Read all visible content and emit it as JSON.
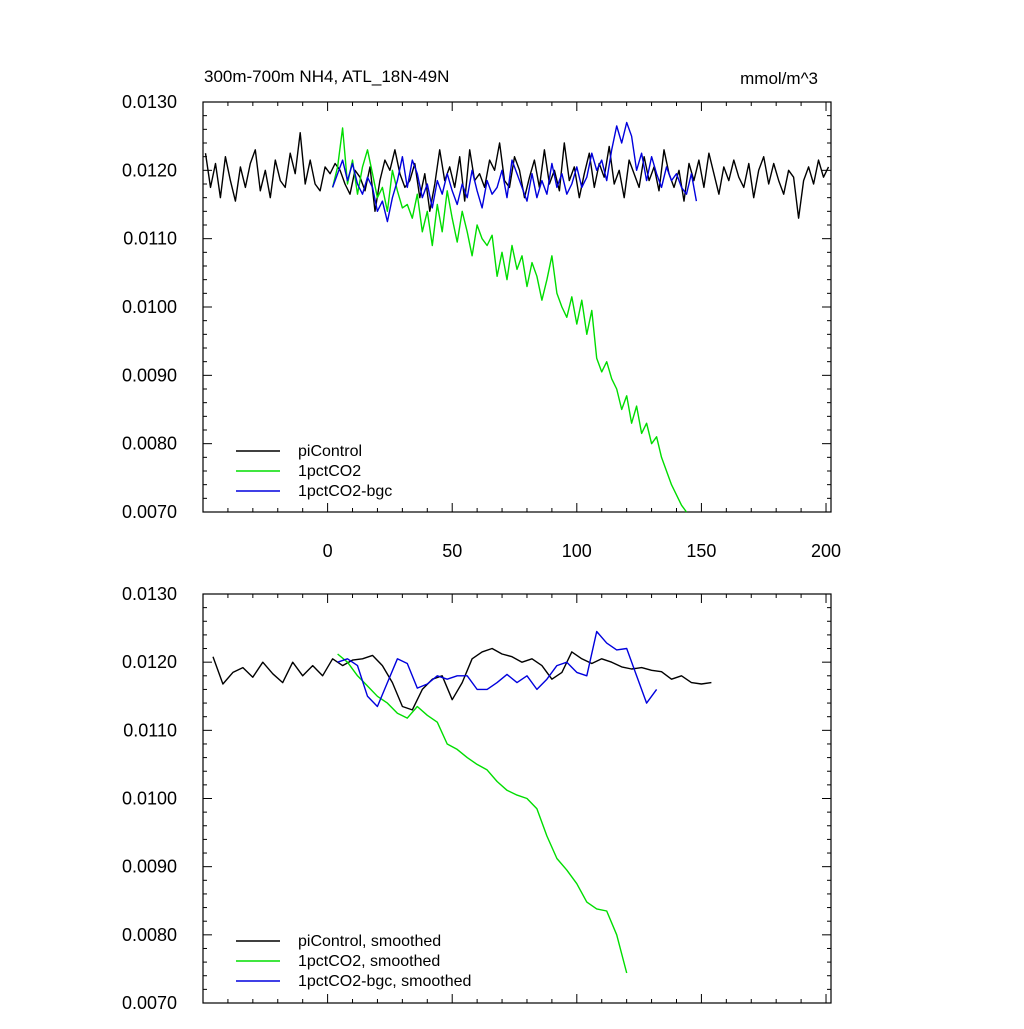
{
  "chart_data": [
    {
      "type": "line",
      "title": "300m-700m NH4, ATL_18N-49N",
      "units": "mmol/m^3",
      "xlim": [
        -50,
        202
      ],
      "ylim": [
        0.007,
        0.013
      ],
      "xticks": [
        0,
        50,
        100,
        150,
        200
      ],
      "xtick_labels": [
        "0",
        "50",
        "100",
        "150",
        "200"
      ],
      "yticks": [
        0.007,
        0.008,
        0.009,
        0.01,
        0.011,
        0.012,
        0.013
      ],
      "ytick_labels": [
        "0.0070",
        "0.0080",
        "0.0090",
        "0.0100",
        "0.0110",
        "0.0120",
        "0.0130"
      ],
      "legend_position": "bottom-left",
      "series": [
        {
          "name": "piControl",
          "color": "#000000",
          "x_start": -49,
          "x_step": 2,
          "values": [
            0.01225,
            0.01175,
            0.0121,
            0.0116,
            0.0122,
            0.01185,
            0.01155,
            0.01205,
            0.01175,
            0.0121,
            0.0123,
            0.0117,
            0.012,
            0.0116,
            0.01215,
            0.01185,
            0.01175,
            0.01225,
            0.01195,
            0.01255,
            0.0118,
            0.01215,
            0.0118,
            0.0117,
            0.01205,
            0.01195,
            0.0121,
            0.012,
            0.0118,
            0.01165,
            0.012,
            0.0119,
            0.0117,
            0.01205,
            0.0114,
            0.01185,
            0.01215,
            0.012,
            0.0123,
            0.01195,
            0.01175,
            0.01185,
            0.0121,
            0.0116,
            0.01195,
            0.0114,
            0.0118,
            0.0123,
            0.01185,
            0.01205,
            0.01175,
            0.0122,
            0.01155,
            0.0123,
            0.01185,
            0.01195,
            0.01175,
            0.01215,
            0.012,
            0.0124,
            0.01185,
            0.01175,
            0.0122,
            0.012,
            0.0116,
            0.0119,
            0.01215,
            0.01175,
            0.0123,
            0.0118,
            0.012,
            0.0117,
            0.0124,
            0.01185,
            0.01205,
            0.0116,
            0.01195,
            0.01225,
            0.01175,
            0.0121,
            0.0119,
            0.01235,
            0.0118,
            0.012,
            0.0116,
            0.01215,
            0.01195,
            0.01175,
            0.0122,
            0.01185,
            0.01205,
            0.0117,
            0.0123,
            0.01195,
            0.01175,
            0.012,
            0.01155,
            0.0121,
            0.01185,
            0.01215,
            0.01175,
            0.01225,
            0.01195,
            0.01165,
            0.01205,
            0.01185,
            0.01215,
            0.0119,
            0.01175,
            0.0121,
            0.0116,
            0.012,
            0.0122,
            0.0118,
            0.0121,
            0.01185,
            0.01165,
            0.012,
            0.0119,
            0.0113,
            0.01185,
            0.01205,
            0.0118,
            0.01215,
            0.0119,
            0.01205
          ]
        },
        {
          "name": "1pctCO2",
          "color": "#00dd00",
          "x_start": 2,
          "x_step": 2,
          "values": [
            0.01175,
            0.01205,
            0.01262,
            0.0118,
            0.01215,
            0.01165,
            0.01205,
            0.0123,
            0.01195,
            0.0116,
            0.01175,
            0.0114,
            0.012,
            0.0117,
            0.01145,
            0.0115,
            0.0113,
            0.01165,
            0.0111,
            0.0114,
            0.0109,
            0.0115,
            0.0111,
            0.0117,
            0.0113,
            0.01095,
            0.0114,
            0.0111,
            0.01075,
            0.0112,
            0.011,
            0.0109,
            0.01105,
            0.01045,
            0.0108,
            0.0104,
            0.0109,
            0.01055,
            0.01075,
            0.0103,
            0.01065,
            0.01045,
            0.0101,
            0.0104,
            0.01075,
            0.0102,
            0.01,
            0.00985,
            0.01015,
            0.00975,
            0.0101,
            0.0096,
            0.00995,
            0.00925,
            0.00905,
            0.0092,
            0.00895,
            0.0088,
            0.0085,
            0.0087,
            0.0083,
            0.00855,
            0.00815,
            0.0083,
            0.008,
            0.0081,
            0.0078,
            0.0076,
            0.0074,
            0.00725,
            0.0071,
            0.007
          ]
        },
        {
          "name": "1pctCO2-bgc",
          "color": "#0000dd",
          "x_start": 2,
          "x_step": 2,
          "values": [
            0.01175,
            0.01195,
            0.01215,
            0.01185,
            0.0121,
            0.0118,
            0.01165,
            0.0119,
            0.01175,
            0.0114,
            0.01155,
            0.01125,
            0.0116,
            0.01185,
            0.0122,
            0.01175,
            0.01215,
            0.01195,
            0.0116,
            0.0118,
            0.01145,
            0.01185,
            0.01165,
            0.01195,
            0.0117,
            0.0115,
            0.0118,
            0.0116,
            0.012,
            0.0117,
            0.01145,
            0.01185,
            0.01165,
            0.01175,
            0.012,
            0.0116,
            0.01215,
            0.01195,
            0.01175,
            0.01155,
            0.01195,
            0.0116,
            0.01185,
            0.01165,
            0.0121,
            0.01175,
            0.01195,
            0.01165,
            0.0118,
            0.01205,
            0.01175,
            0.0119,
            0.01225,
            0.012,
            0.01215,
            0.01185,
            0.0123,
            0.01265,
            0.0124,
            0.0127,
            0.0125,
            0.012,
            0.01225,
            0.01185,
            0.0122,
            0.01195,
            0.01175,
            0.01205,
            0.01185,
            0.01195,
            0.01175,
            0.01165,
            0.01195,
            0.01155
          ]
        }
      ]
    },
    {
      "type": "line",
      "title": "",
      "units": "",
      "xlim": [
        -50,
        202
      ],
      "ylim": [
        0.007,
        0.013
      ],
      "xticks": [
        0,
        50,
        100,
        150,
        200
      ],
      "yticks": [
        0.007,
        0.008,
        0.009,
        0.01,
        0.011,
        0.012,
        0.013
      ],
      "ytick_labels": [
        "0.0070",
        "0.0080",
        "0.0090",
        "0.0100",
        "0.0110",
        "0.0120",
        "0.0130"
      ],
      "legend_position": "bottom-left",
      "series": [
        {
          "name": "piControl, smoothed",
          "color": "#000000",
          "x_start": -46,
          "x_step": 4,
          "values": [
            0.01208,
            0.01168,
            0.01185,
            0.01192,
            0.01178,
            0.012,
            0.01183,
            0.0117,
            0.012,
            0.0118,
            0.01195,
            0.0118,
            0.01205,
            0.01195,
            0.01203,
            0.01205,
            0.0121,
            0.01195,
            0.0117,
            0.01135,
            0.0113,
            0.0116,
            0.01175,
            0.0118,
            0.01145,
            0.0117,
            0.01205,
            0.01215,
            0.0122,
            0.01212,
            0.01208,
            0.012,
            0.01205,
            0.01195,
            0.01175,
            0.01185,
            0.01215,
            0.01205,
            0.01198,
            0.01205,
            0.012,
            0.01193,
            0.0119,
            0.01192,
            0.01188,
            0.01186,
            0.01175,
            0.0118,
            0.0117,
            0.01168,
            0.0117
          ]
        },
        {
          "name": "1pctCO2, smoothed",
          "color": "#00dd00",
          "x_start": 4,
          "x_step": 4,
          "values": [
            0.01212,
            0.012,
            0.0118,
            0.01165,
            0.0115,
            0.0114,
            0.01125,
            0.01118,
            0.01135,
            0.01122,
            0.01112,
            0.0108,
            0.01072,
            0.0106,
            0.0105,
            0.01042,
            0.01025,
            0.01012,
            0.01005,
            0.01,
            0.00985,
            0.00945,
            0.00912,
            0.00895,
            0.00875,
            0.00848,
            0.00838,
            0.00835,
            0.008,
            0.00744
          ]
        },
        {
          "name": "1pctCO2-bgc, smoothed",
          "color": "#0000dd",
          "x_start": 4,
          "x_step": 4,
          "values": [
            0.012,
            0.01205,
            0.01195,
            0.0115,
            0.01135,
            0.0117,
            0.01205,
            0.01198,
            0.01162,
            0.01168,
            0.0118,
            0.01175,
            0.0118,
            0.0118,
            0.0116,
            0.0116,
            0.0117,
            0.01182,
            0.0117,
            0.0118,
            0.0116,
            0.01175,
            0.01195,
            0.012,
            0.01185,
            0.0118,
            0.01245,
            0.01228,
            0.01218,
            0.0122,
            0.0118,
            0.0114,
            0.0116
          ]
        }
      ]
    }
  ]
}
